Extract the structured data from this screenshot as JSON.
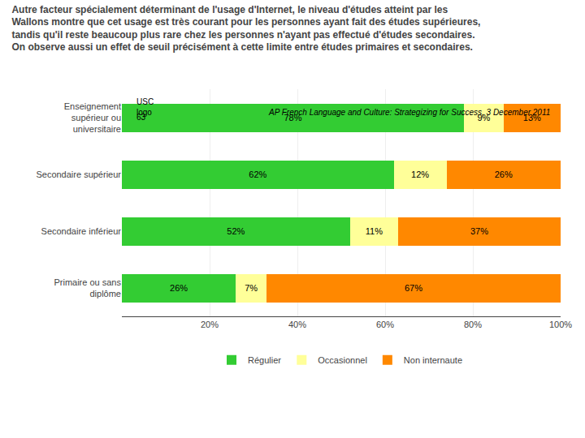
{
  "chart_data": {
    "type": "bar",
    "orientation": "horizontal",
    "stacked": true,
    "title": "Autre facteur spécialement déterminant de l'usage d'Internet, le niveau d'études atteint par les Wallons montre que cet usage est très courant pour les personnes ayant fait des études supérieures, tandis qu'il reste beaucoup plus rare chez les personnes n'ayant pas effectué d'études secondaires. On observe aussi un effet de seuil précisément à cette limite entre études primaires et secondaires.",
    "categories": [
      "Enseignement\nsupérieur ou\nuniversitaire",
      "Secondaire supérieur",
      "Secondaire inférieur",
      "Primaire ou sans\ndiplôme"
    ],
    "series": [
      {
        "name": "Régulier",
        "color": "#33cc33",
        "values": [
          78,
          62,
          52,
          26
        ],
        "value_labels": [
          "78%",
          "62%",
          "52%",
          "26%"
        ]
      },
      {
        "name": "Occasionnel",
        "color": "#ffff99",
        "values": [
          9,
          12,
          11,
          7
        ],
        "value_labels": [
          "9%",
          "12%",
          "11%",
          "7%"
        ]
      },
      {
        "name": "Non internaute",
        "color": "#ff8800",
        "values": [
          13,
          26,
          37,
          67
        ],
        "value_labels": [
          "13%",
          "26%",
          "37%",
          "67%"
        ]
      }
    ],
    "xlim": [
      0,
      100
    ],
    "xticks": [
      {
        "value": 20,
        "label": "20%"
      },
      {
        "value": 40,
        "label": "40%"
      },
      {
        "value": 60,
        "label": "60%"
      },
      {
        "value": 80,
        "label": "80%"
      },
      {
        "value": 100,
        "label": "100%"
      }
    ],
    "grid": true,
    "legend": "bottom",
    "data_labels": true,
    "annotations": [
      "63",
      "AP French Language and Culture: Strategizing for Success, 3 December 2011",
      "USC\nlogo"
    ]
  }
}
